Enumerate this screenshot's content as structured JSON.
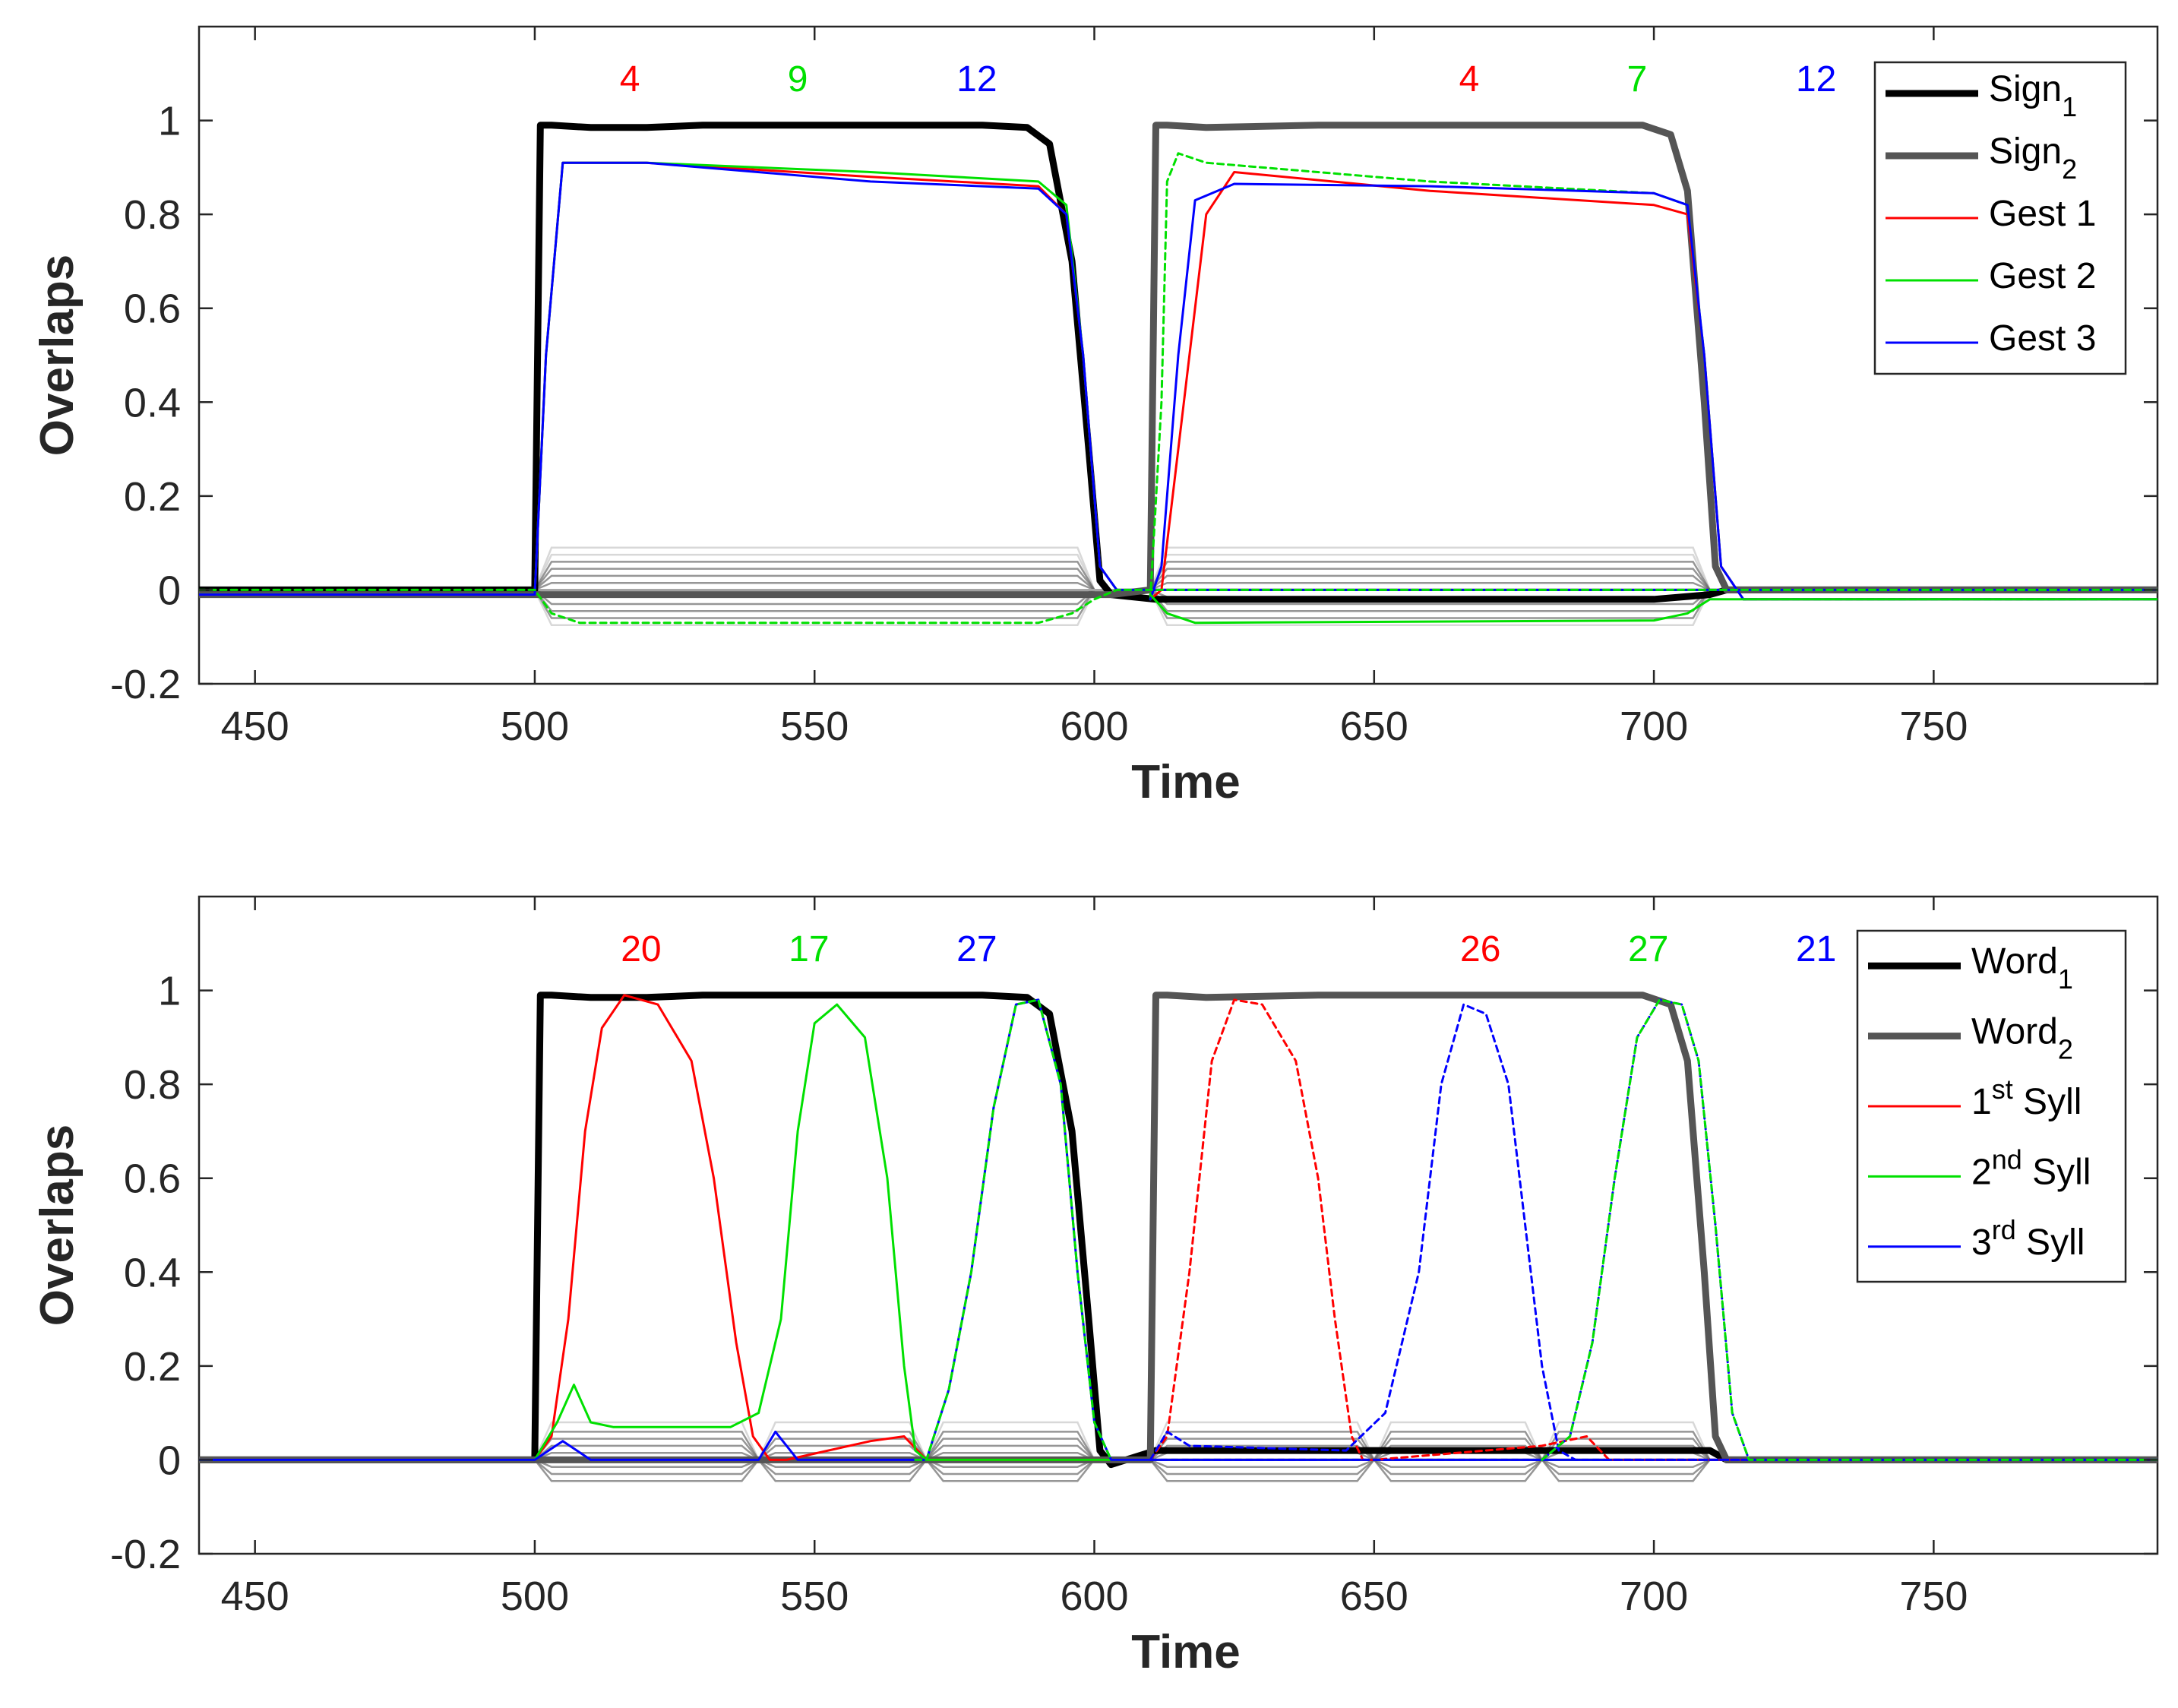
{
  "chart_data": [
    {
      "type": "line",
      "xlabel": "Time",
      "ylabel": "Overlaps",
      "xlim": [
        440,
        790
      ],
      "ylim": [
        -0.2,
        1.2
      ],
      "xticks": [
        450,
        500,
        550,
        600,
        650,
        700,
        750
      ],
      "yticks": [
        -0.2,
        0,
        0.2,
        0.4,
        0.6,
        0.8,
        1
      ],
      "ytick_labels": [
        "-0.2",
        "0",
        "0.2",
        "0.4",
        "0.6",
        "0.8",
        "1"
      ],
      "legend_position": "top-right",
      "legend": [
        {
          "base": "Sign",
          "sup": "",
          "sub": "1",
          "tail": "",
          "color": "#000000",
          "style": "thick"
        },
        {
          "base": "Sign",
          "sup": "",
          "sub": "2",
          "tail": "",
          "color": "#555555",
          "style": "thick"
        },
        {
          "base": "Gest 1",
          "sup": "",
          "sub": "",
          "tail": "",
          "color": "#ff0000",
          "style": "thin"
        },
        {
          "base": "Gest 2",
          "sup": "",
          "sub": "",
          "tail": "",
          "color": "#00e000",
          "style": "thin"
        },
        {
          "base": "Gest 3",
          "sup": "",
          "sub": "",
          "tail": "",
          "color": "#0000ff",
          "style": "thin"
        }
      ],
      "annotations": [
        {
          "text": "4",
          "x": 517,
          "color": "#ff0000"
        },
        {
          "text": "9",
          "x": 547,
          "color": "#00e000"
        },
        {
          "text": "12",
          "x": 579,
          "color": "#0000ff"
        },
        {
          "text": "4",
          "x": 667,
          "color": "#ff0000"
        },
        {
          "text": "7",
          "x": 697,
          "color": "#00e000"
        },
        {
          "text": "12",
          "x": 729,
          "color": "#0000ff"
        }
      ],
      "series": [
        {
          "name": "Sign 1",
          "color": "#000000",
          "width": 9,
          "dash": "",
          "x": [
            440,
            500,
            501,
            503,
            510,
            520,
            530,
            580,
            588,
            592,
            596,
            599,
            601,
            603,
            611,
            640,
            700,
            710,
            713,
            790
          ],
          "y": [
            0.0,
            0.0,
            0.99,
            0.99,
            0.985,
            0.985,
            0.99,
            0.99,
            0.985,
            0.95,
            0.7,
            0.3,
            0.02,
            -0.01,
            -0.02,
            -0.02,
            -0.02,
            -0.01,
            0.0,
            0.0
          ]
        },
        {
          "name": "Sign 2",
          "color": "#555555",
          "width": 9,
          "dash": "",
          "x": [
            440,
            600,
            603,
            610,
            611,
            613,
            620,
            640,
            698,
            703,
            706,
            709,
            711,
            713,
            790
          ],
          "y": [
            -0.01,
            -0.01,
            -0.01,
            0.0,
            0.99,
            0.99,
            0.985,
            0.99,
            0.99,
            0.97,
            0.85,
            0.4,
            0.05,
            0.0,
            0.0
          ]
        },
        {
          "name": "Gest 1 (word 1)",
          "color": "#ff0000",
          "width": 3,
          "dash": "",
          "x": [
            440,
            500,
            502,
            505,
            520,
            560,
            590,
            595,
            598,
            601,
            604,
            790
          ],
          "y": [
            -0.01,
            -0.01,
            0.5,
            0.91,
            0.91,
            0.88,
            0.86,
            0.8,
            0.5,
            0.05,
            0.0,
            0.0
          ]
        },
        {
          "name": "Gest 2 (word 1)",
          "color": "#00e000",
          "width": 3,
          "dash": "",
          "x": [
            440,
            500,
            502,
            505,
            520,
            560,
            590,
            595,
            598,
            601,
            604,
            790
          ],
          "y": [
            -0.01,
            -0.01,
            0.5,
            0.91,
            0.91,
            0.89,
            0.87,
            0.82,
            0.5,
            0.05,
            0.0,
            0.0
          ]
        },
        {
          "name": "Gest 3 (word 1)",
          "color": "#0000ff",
          "width": 3,
          "dash": "",
          "x": [
            440,
            500,
            502,
            505,
            520,
            560,
            590,
            595,
            598,
            601,
            604,
            790
          ],
          "y": [
            -0.01,
            -0.01,
            0.5,
            0.91,
            0.91,
            0.87,
            0.855,
            0.8,
            0.5,
            0.05,
            0.0,
            0.0
          ]
        },
        {
          "name": "Gest 1 (word 2)",
          "color": "#ff0000",
          "width": 3,
          "dash": "",
          "x": [
            610,
            612,
            616,
            620,
            625,
            660,
            700,
            706,
            709,
            712,
            716,
            790
          ],
          "y": [
            -0.02,
            0.0,
            0.4,
            0.8,
            0.89,
            0.85,
            0.82,
            0.8,
            0.5,
            0.05,
            -0.02,
            -0.02
          ]
        },
        {
          "name": "Gest 2 (word 2)",
          "color": "#00e000",
          "width": 3,
          "dash": "8,6",
          "x": [
            610,
            612,
            613,
            615,
            620,
            660,
            700,
            706,
            709,
            712,
            716,
            790
          ],
          "y": [
            -0.02,
            0.4,
            0.87,
            0.93,
            0.91,
            0.87,
            0.845,
            0.82,
            0.5,
            0.05,
            -0.02,
            -0.02
          ]
        },
        {
          "name": "Gest 3 (word 2)",
          "color": "#0000ff",
          "width": 3,
          "dash": "",
          "x": [
            610,
            612,
            615,
            618,
            625,
            660,
            700,
            706,
            709,
            712,
            716,
            790
          ],
          "y": [
            -0.02,
            0.05,
            0.5,
            0.83,
            0.865,
            0.86,
            0.845,
            0.82,
            0.5,
            0.05,
            -0.02,
            -0.02
          ]
        },
        {
          "name": "Gest 2 negative (word 1)",
          "color": "#00e000",
          "width": 3,
          "dash": "8,6",
          "x": [
            440,
            500,
            503,
            508,
            590,
            596,
            600,
            604,
            790
          ],
          "y": [
            0.0,
            0.0,
            -0.05,
            -0.07,
            -0.07,
            -0.05,
            -0.02,
            0.0,
            0.0
          ]
        },
        {
          "name": "Gest 2 negative (word 2)",
          "color": "#00e000",
          "width": 3,
          "dash": "",
          "x": [
            610,
            613,
            618,
            700,
            706,
            710,
            714,
            790
          ],
          "y": [
            -0.01,
            -0.05,
            -0.07,
            -0.065,
            -0.05,
            -0.02,
            -0.02,
            -0.02
          ]
        }
      ],
      "background_offsets": [
        0.09,
        0.075,
        0.06,
        0.045,
        0.03,
        0.015,
        -0.015,
        -0.03,
        -0.045,
        -0.06,
        -0.075
      ],
      "background_segments": [
        [
          500,
          600
        ],
        [
          610,
          710
        ]
      ]
    },
    {
      "type": "line",
      "xlabel": "Time",
      "ylabel": "Overlaps",
      "xlim": [
        440,
        790
      ],
      "ylim": [
        -0.2,
        1.2
      ],
      "xticks": [
        450,
        500,
        550,
        600,
        650,
        700,
        750
      ],
      "yticks": [
        -0.2,
        0,
        0.2,
        0.4,
        0.6,
        0.8,
        1
      ],
      "ytick_labels": [
        "-0.2",
        "0",
        "0.2",
        "0.4",
        "0.6",
        "0.8",
        "1"
      ],
      "legend_position": "top-right",
      "legend": [
        {
          "base": "Word",
          "sup": "",
          "sub": "1",
          "tail": "",
          "color": "#000000",
          "style": "thick"
        },
        {
          "base": "Word",
          "sup": "",
          "sub": "2",
          "tail": "",
          "color": "#555555",
          "style": "thick"
        },
        {
          "base": "1",
          "sup": "st",
          "sub": "",
          "tail": " Syll",
          "color": "#ff0000",
          "style": "thin"
        },
        {
          "base": "2",
          "sup": "nd",
          "sub": "",
          "tail": " Syll",
          "color": "#00e000",
          "style": "thin"
        },
        {
          "base": "3",
          "sup": "rd",
          "sub": "",
          "tail": " Syll",
          "color": "#0000ff",
          "style": "thin"
        }
      ],
      "annotations": [
        {
          "text": "20",
          "x": 519,
          "color": "#ff0000"
        },
        {
          "text": "17",
          "x": 549,
          "color": "#00e000"
        },
        {
          "text": "27",
          "x": 579,
          "color": "#0000ff"
        },
        {
          "text": "26",
          "x": 669,
          "color": "#ff0000"
        },
        {
          "text": "27",
          "x": 699,
          "color": "#00e000"
        },
        {
          "text": "21",
          "x": 729,
          "color": "#0000ff"
        }
      ],
      "series": [
        {
          "name": "Word 1",
          "color": "#000000",
          "width": 9,
          "dash": "",
          "x": [
            440,
            500,
            501,
            503,
            510,
            520,
            530,
            580,
            588,
            592,
            596,
            599,
            601,
            603,
            611,
            640,
            700,
            710,
            713,
            790
          ],
          "y": [
            0.0,
            0.0,
            0.99,
            0.99,
            0.985,
            0.985,
            0.99,
            0.99,
            0.985,
            0.95,
            0.7,
            0.3,
            0.02,
            -0.01,
            0.02,
            0.02,
            0.02,
            0.02,
            0.0,
            0.0
          ]
        },
        {
          "name": "Word 2",
          "color": "#555555",
          "width": 9,
          "dash": "",
          "x": [
            440,
            600,
            603,
            610,
            611,
            613,
            620,
            640,
            698,
            703,
            706,
            709,
            711,
            713,
            790
          ],
          "y": [
            0.0,
            0.0,
            0.0,
            0.0,
            0.99,
            0.99,
            0.985,
            0.99,
            0.99,
            0.97,
            0.85,
            0.4,
            0.05,
            0.0,
            0.0
          ]
        },
        {
          "name": "1st Syll (word 1)",
          "color": "#ff0000",
          "width": 3,
          "dash": "",
          "x": [
            440,
            500,
            503,
            506,
            509,
            512,
            516,
            522,
            528,
            532,
            536,
            539,
            542,
            545,
            560,
            566,
            570,
            790
          ],
          "y": [
            0.0,
            0.0,
            0.05,
            0.3,
            0.7,
            0.92,
            0.99,
            0.97,
            0.85,
            0.6,
            0.25,
            0.05,
            0.0,
            0.0,
            0.04,
            0.05,
            0.0,
            0.0
          ]
        },
        {
          "name": "2nd Syll (word 1)",
          "color": "#00e000",
          "width": 3,
          "dash": "",
          "x": [
            440,
            500,
            504,
            507,
            510,
            514,
            535,
            540,
            544,
            547,
            550,
            554,
            559,
            563,
            566,
            568,
            570,
            580,
            600,
            790
          ],
          "y": [
            0.0,
            0.0,
            0.08,
            0.16,
            0.08,
            0.07,
            0.07,
            0.1,
            0.3,
            0.7,
            0.93,
            0.97,
            0.9,
            0.6,
            0.2,
            0.02,
            0.0,
            0.0,
            0.0,
            0.0
          ]
        },
        {
          "name": "3rd Syll (word 1)",
          "color": "#0000ff",
          "width": 3,
          "dash": "",
          "x": [
            440,
            500,
            505,
            510,
            540,
            543,
            547,
            570,
            574,
            578,
            582,
            586,
            590,
            594,
            597,
            600,
            603,
            790
          ],
          "y": [
            0.0,
            0.0,
            0.04,
            0.0,
            0.0,
            0.06,
            0.0,
            0.0,
            0.15,
            0.4,
            0.75,
            0.97,
            0.98,
            0.8,
            0.4,
            0.08,
            0.0,
            0.0
          ]
        },
        {
          "name": "3rd Syll dashed green (word 1)",
          "color": "#00e000",
          "width": 3,
          "dash": "8,6",
          "x": [
            568,
            570,
            574,
            578,
            582,
            586,
            590,
            594,
            597,
            600,
            603
          ],
          "y": [
            0.0,
            0.0,
            0.15,
            0.4,
            0.75,
            0.97,
            0.98,
            0.8,
            0.4,
            0.08,
            0.0
          ]
        },
        {
          "name": "1st Syll (word 2)",
          "color": "#ff0000",
          "width": 3,
          "dash": "8,6",
          "x": [
            610,
            613,
            617,
            621,
            625,
            630,
            636,
            640,
            643,
            646,
            648,
            650,
            680,
            688,
            692,
            790
          ],
          "y": [
            0.0,
            0.05,
            0.4,
            0.85,
            0.98,
            0.97,
            0.85,
            0.6,
            0.3,
            0.05,
            0.0,
            0.0,
            0.03,
            0.05,
            0.0,
            0.0
          ]
        },
        {
          "name": "2nd Syll (word 2)",
          "color": "#0000ff",
          "width": 3,
          "dash": "8,6",
          "x": [
            610,
            613,
            617,
            645,
            652,
            658,
            662,
            666,
            670,
            674,
            677,
            680,
            683,
            686,
            790
          ],
          "y": [
            0.0,
            0.06,
            0.03,
            0.02,
            0.1,
            0.4,
            0.8,
            0.97,
            0.95,
            0.8,
            0.5,
            0.2,
            0.02,
            0.0,
            0.0
          ]
        },
        {
          "name": "3rd Syll (word 2)",
          "color": "#0000ff",
          "width": 3,
          "dash": "8,6",
          "x": [
            610,
            680,
            685,
            689,
            693,
            697,
            701,
            705,
            708,
            711,
            714,
            717,
            790
          ],
          "y": [
            0.0,
            0.0,
            0.05,
            0.25,
            0.6,
            0.9,
            0.98,
            0.97,
            0.85,
            0.5,
            0.1,
            0.0,
            0.0
          ]
        },
        {
          "name": "3rd Syll dashed green (word 2)",
          "color": "#00e000",
          "width": 3,
          "dash": "8,6",
          "x": [
            680,
            685,
            689,
            693,
            697,
            701,
            705,
            708,
            711,
            714,
            717,
            790
          ],
          "y": [
            0.0,
            0.05,
            0.25,
            0.6,
            0.9,
            0.98,
            0.97,
            0.85,
            0.5,
            0.1,
            0.0,
            0.0
          ]
        }
      ],
      "background_offsets": [
        0.08,
        0.06,
        0.045,
        0.03,
        0.015,
        -0.015,
        -0.03,
        -0.045
      ],
      "background_segments": [
        [
          500,
          540
        ],
        [
          540,
          570
        ],
        [
          570,
          600
        ],
        [
          610,
          650
        ],
        [
          650,
          680
        ],
        [
          680,
          710
        ]
      ]
    }
  ]
}
